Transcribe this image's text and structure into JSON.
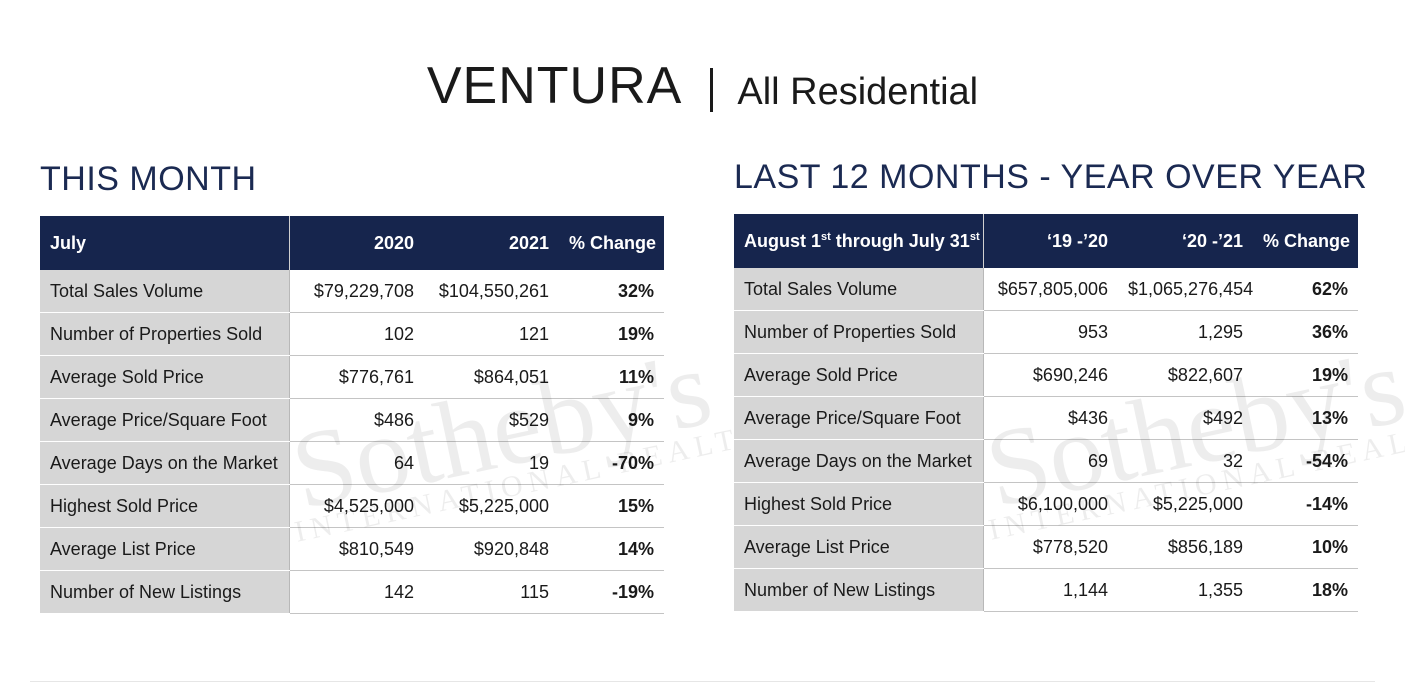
{
  "header": {
    "city": "VENTURA",
    "subtitle": "All Residential"
  },
  "watermark": {
    "brand": "Sotheby's",
    "tagline": "INTERNATIONAL REALTY"
  },
  "this_month": {
    "heading": "THIS MONTH",
    "columns": [
      "July",
      "2020",
      "2021",
      "% Change"
    ],
    "rows": [
      {
        "label": "Total Sales Volume",
        "a": "$79,229,708",
        "b": "$104,550,261",
        "pct": "32%"
      },
      {
        "label": "Number of Properties Sold",
        "a": "102",
        "b": "121",
        "pct": "19%"
      },
      {
        "label": "Average Sold Price",
        "a": "$776,761",
        "b": "$864,051",
        "pct": "11%"
      },
      {
        "label": "Average Price/Square Foot",
        "a": "$486",
        "b": "$529",
        "pct": "9%"
      },
      {
        "label": "Average Days on the Market",
        "a": "64",
        "b": "19",
        "pct": "-70%"
      },
      {
        "label": "Highest Sold Price",
        "a": "$4,525,000",
        "b": "$5,225,000",
        "pct": "15%"
      },
      {
        "label": "Average List Price",
        "a": "$810,549",
        "b": "$920,848",
        "pct": "14%"
      },
      {
        "label": "Number of New Listings",
        "a": "142",
        "b": "115",
        "pct": "-19%"
      }
    ]
  },
  "last_12": {
    "heading": "LAST 12 MONTHS - YEAR OVER YEAR",
    "label_header": {
      "part1": "August 1",
      "sup1": "st",
      "part2": " through July 31",
      "sup2": "st"
    },
    "columns": [
      "‘19 -’20",
      "‘20 -’21",
      "% Change"
    ],
    "rows": [
      {
        "label": "Total Sales Volume",
        "a": "$657,805,006",
        "b": "$1,065,276,454",
        "pct": "62%"
      },
      {
        "label": "Number of Properties Sold",
        "a": "953",
        "b": "1,295",
        "pct": "36%"
      },
      {
        "label": "Average Sold Price",
        "a": "$690,246",
        "b": "$822,607",
        "pct": "19%"
      },
      {
        "label": "Average Price/Square Foot",
        "a": "$436",
        "b": "$492",
        "pct": "13%"
      },
      {
        "label": "Average Days on the Market",
        "a": "69",
        "b": "32",
        "pct": "-54%"
      },
      {
        "label": "Highest Sold Price",
        "a": "$6,100,000",
        "b": "$5,225,000",
        "pct": "-14%"
      },
      {
        "label": "Average List Price",
        "a": "$778,520",
        "b": "$856,189",
        "pct": "10%"
      },
      {
        "label": "Number of New Listings",
        "a": "1,144",
        "b": "1,355",
        "pct": "18%"
      }
    ]
  }
}
